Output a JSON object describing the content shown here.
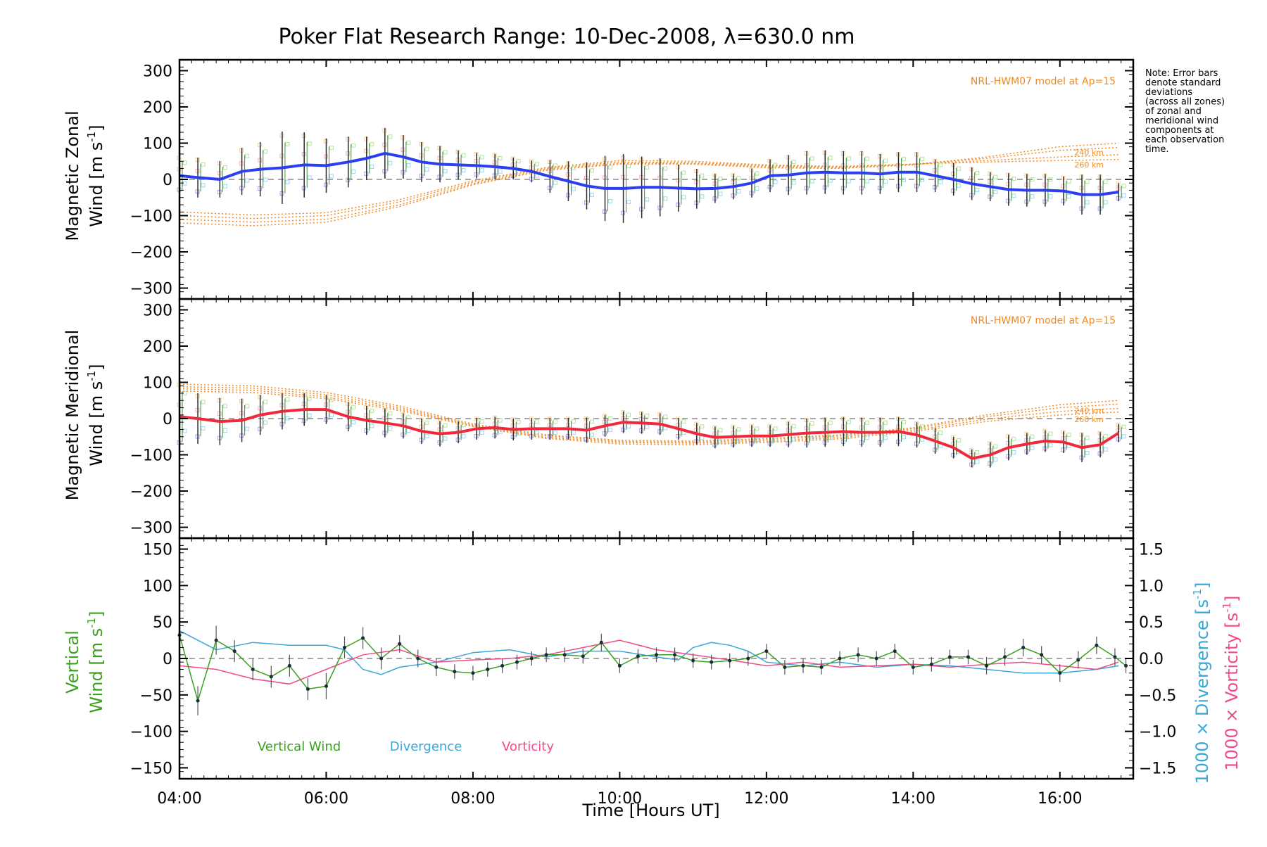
{
  "title": "Poker Flat Research Range: 10-Dec-2008, λ=630.0 nm",
  "note": [
    "Note: Error bars",
    "denote standard",
    "deviations",
    "(across all zones)",
    "of zonal and",
    "meridional wind",
    "components at",
    "each observation",
    "time."
  ],
  "xlabel": "Time [Hours UT]",
  "x_ticks": [
    "04:00",
    "06:00",
    "08:00",
    "10:00",
    "12:00",
    "14:00",
    "16:00"
  ],
  "colors": {
    "zonal": "#2b3ff0",
    "meridional": "#f0283c",
    "model": "#f08a24",
    "vertical": "#3aa01e",
    "divergence": "#3aa6d6",
    "vorticity": "#f04a8a",
    "zero_line": "#8a8a8a"
  },
  "chart_data": [
    {
      "type": "line",
      "panel": "zonal",
      "ylabel_line1": "Magnetic Zonal",
      "ylabel_line2": "Wind [m s",
      "ylabel_sup": "-1",
      "ylabel_close": "]",
      "ylim": [
        -330,
        330
      ],
      "y_ticks": [
        300,
        200,
        100,
        0,
        -100,
        -200,
        -300
      ],
      "model_label": "NRL-HWM07 model at Ap=15",
      "model_alt_labels": [
        "240 km",
        "260 km"
      ],
      "x": [
        4.0,
        4.25,
        4.55,
        4.85,
        5.1,
        5.4,
        5.7,
        6.0,
        6.3,
        6.55,
        6.8,
        7.05,
        7.3,
        7.55,
        7.8,
        8.05,
        8.3,
        8.55,
        8.8,
        9.05,
        9.3,
        9.55,
        9.8,
        10.05,
        10.3,
        10.55,
        10.8,
        11.05,
        11.3,
        11.55,
        11.8,
        12.05,
        12.3,
        12.55,
        12.8,
        13.05,
        13.3,
        13.55,
        13.8,
        14.05,
        14.3,
        14.55,
        14.8,
        15.05,
        15.3,
        15.55,
        15.8,
        16.05,
        16.3,
        16.55,
        16.8
      ],
      "values": [
        10,
        5,
        0,
        22,
        28,
        32,
        40,
        38,
        48,
        58,
        72,
        62,
        48,
        42,
        40,
        38,
        35,
        30,
        22,
        8,
        -5,
        -18,
        -25,
        -25,
        -22,
        -22,
        -24,
        -26,
        -25,
        -20,
        -10,
        10,
        12,
        18,
        20,
        18,
        18,
        15,
        20,
        20,
        10,
        0,
        -12,
        -20,
        -28,
        -30,
        -30,
        -32,
        -42,
        -42,
        -35
      ],
      "errors": [
        55,
        55,
        50,
        65,
        75,
        100,
        90,
        75,
        70,
        60,
        70,
        60,
        55,
        50,
        40,
        35,
        35,
        30,
        30,
        45,
        55,
        65,
        90,
        95,
        85,
        80,
        65,
        55,
        40,
        35,
        40,
        45,
        55,
        60,
        60,
        60,
        60,
        55,
        55,
        55,
        45,
        45,
        45,
        40,
        45,
        45,
        45,
        40,
        55,
        55,
        25
      ],
      "model_curves": [
        {
          "x": [
            4.0,
            5.0,
            6.0,
            7.0,
            8.0,
            9.0,
            10.0,
            11.0,
            12.0,
            13.0,
            14.0,
            15.0,
            16.0,
            16.8
          ],
          "values": [
            -120,
            -128,
            -118,
            -75,
            -15,
            25,
            42,
            42,
            32,
            30,
            40,
            62,
            90,
            100
          ]
        },
        {
          "x": [
            4.0,
            5.0,
            6.0,
            7.0,
            8.0,
            9.0,
            10.0,
            11.0,
            12.0,
            13.0,
            14.0,
            15.0,
            16.0,
            16.8
          ],
          "values": [
            -110,
            -118,
            -110,
            -70,
            -12,
            28,
            44,
            44,
            35,
            32,
            42,
            58,
            80,
            88
          ]
        },
        {
          "x": [
            4.0,
            5.0,
            6.0,
            7.0,
            8.0,
            9.0,
            10.0,
            11.0,
            12.0,
            13.0,
            14.0,
            15.0,
            16.0,
            16.8
          ],
          "values": [
            -100,
            -108,
            -100,
            -62,
            -8,
            30,
            48,
            46,
            38,
            34,
            42,
            52,
            62,
            68
          ]
        },
        {
          "x": [
            4.0,
            5.0,
            6.0,
            7.0,
            8.0,
            9.0,
            10.0,
            11.0,
            12.0,
            13.0,
            14.0,
            15.0,
            16.0,
            16.8
          ],
          "values": [
            -90,
            -98,
            -92,
            -56,
            -4,
            33,
            52,
            50,
            40,
            36,
            42,
            48,
            52,
            55
          ]
        }
      ]
    },
    {
      "type": "line",
      "panel": "meridional",
      "ylabel_line1": "Magnetic Meridional",
      "ylabel_line2": "Wind [m s",
      "ylabel_sup": "-1",
      "ylabel_close": "]",
      "ylim": [
        -330,
        330
      ],
      "y_ticks": [
        300,
        200,
        100,
        0,
        -100,
        -200,
        -300
      ],
      "model_label": "NRL-HWM07 model at Ap=15",
      "model_alt_labels": [
        "240 km",
        "260 km"
      ],
      "x": [
        4.0,
        4.25,
        4.55,
        4.85,
        5.1,
        5.4,
        5.7,
        6.0,
        6.3,
        6.55,
        6.8,
        7.05,
        7.3,
        7.55,
        7.8,
        8.05,
        8.3,
        8.55,
        8.8,
        9.05,
        9.3,
        9.55,
        9.8,
        10.05,
        10.3,
        10.55,
        10.8,
        11.05,
        11.3,
        11.55,
        11.8,
        12.05,
        12.3,
        12.55,
        12.8,
        13.05,
        13.3,
        13.55,
        13.8,
        14.05,
        14.3,
        14.55,
        14.8,
        15.05,
        15.3,
        15.55,
        15.8,
        16.05,
        16.3,
        16.55,
        16.8
      ],
      "values": [
        5,
        0,
        -8,
        -5,
        10,
        20,
        25,
        25,
        5,
        -5,
        -12,
        -20,
        -35,
        -42,
        -38,
        -28,
        -25,
        -30,
        -28,
        -28,
        -28,
        -32,
        -20,
        -10,
        -12,
        -15,
        -28,
        -42,
        -52,
        -50,
        -48,
        -48,
        -44,
        -40,
        -38,
        -36,
        -38,
        -38,
        -36,
        -45,
        -62,
        -80,
        -110,
        -100,
        -80,
        -70,
        -62,
        -65,
        -80,
        -72,
        -40
      ],
      "errors": [
        100,
        70,
        65,
        60,
        55,
        50,
        45,
        40,
        40,
        40,
        40,
        35,
        35,
        35,
        30,
        30,
        30,
        30,
        30,
        30,
        30,
        35,
        30,
        30,
        30,
        30,
        30,
        30,
        30,
        30,
        30,
        30,
        35,
        40,
        40,
        40,
        40,
        40,
        40,
        35,
        35,
        30,
        25,
        35,
        35,
        30,
        30,
        30,
        40,
        35,
        25
      ],
      "model_curves": [
        {
          "x": [
            4.0,
            5.0,
            6.0,
            7.0,
            8.0,
            9.0,
            10.0,
            11.0,
            12.0,
            13.0,
            14.0,
            15.0,
            16.0,
            16.8
          ],
          "values": [
            95,
            90,
            72,
            35,
            -15,
            -45,
            -60,
            -62,
            -55,
            -45,
            -25,
            10,
            38,
            50
          ]
        },
        {
          "x": [
            4.0,
            5.0,
            6.0,
            7.0,
            8.0,
            9.0,
            10.0,
            11.0,
            12.0,
            13.0,
            14.0,
            15.0,
            16.0,
            16.8
          ],
          "values": [
            88,
            84,
            66,
            30,
            -18,
            -48,
            -63,
            -65,
            -58,
            -48,
            -28,
            5,
            30,
            40
          ]
        },
        {
          "x": [
            4.0,
            5.0,
            6.0,
            7.0,
            8.0,
            9.0,
            10.0,
            11.0,
            12.0,
            13.0,
            14.0,
            15.0,
            16.0,
            16.8
          ],
          "values": [
            82,
            78,
            60,
            26,
            -20,
            -52,
            -66,
            -68,
            -62,
            -52,
            -32,
            -2,
            20,
            28
          ]
        },
        {
          "x": [
            4.0,
            5.0,
            6.0,
            7.0,
            8.0,
            9.0,
            10.0,
            11.0,
            12.0,
            13.0,
            14.0,
            15.0,
            16.0,
            16.8
          ],
          "values": [
            76,
            72,
            55,
            22,
            -22,
            -55,
            -70,
            -72,
            -66,
            -56,
            -36,
            -8,
            10,
            18
          ]
        }
      ]
    },
    {
      "type": "line",
      "panel": "vertical",
      "ylabel_line1": "Vertical",
      "ylabel_line2": "Wind [m s",
      "ylabel_sup": "-1",
      "ylabel_close": "]",
      "ylim": [
        -165,
        165
      ],
      "y_ticks": [
        150,
        100,
        50,
        0,
        -50,
        -100,
        -150
      ],
      "y2lim": [
        -1.65,
        1.65
      ],
      "y2_ticks": [
        "1.5",
        "1.0",
        "0.5",
        "0.0",
        "-0.5",
        "-1.0",
        "-1.5"
      ],
      "y2_ticks_values": [
        1.5,
        1.0,
        0.5,
        0.0,
        -0.5,
        -1.0,
        -1.5
      ],
      "y2_label_divergence": "1000 × Divergence [s",
      "y2_label_vorticity": "1000 × Vorticity [s",
      "y2_label_sup": "-1",
      "y2_label_close": "]",
      "legend": [
        "Vertical Wind",
        "Divergence",
        "Vorticity"
      ],
      "series": [
        {
          "name": "Vertical Wind",
          "x": [
            4.0,
            4.25,
            4.5,
            4.75,
            5.0,
            5.25,
            5.5,
            5.75,
            6.0,
            6.25,
            6.5,
            6.75,
            7.0,
            7.25,
            7.5,
            7.75,
            8.0,
            8.2,
            8.4,
            8.6,
            8.8,
            9.0,
            9.25,
            9.5,
            9.75,
            10.0,
            10.25,
            10.5,
            10.75,
            11.0,
            11.25,
            11.5,
            11.75,
            12.0,
            12.25,
            12.5,
            12.75,
            13.0,
            13.25,
            13.5,
            13.75,
            14.0,
            14.25,
            14.5,
            14.75,
            15.0,
            15.25,
            15.5,
            15.75,
            16.0,
            16.25,
            16.5,
            16.75,
            16.9
          ],
          "values": [
            32,
            -58,
            25,
            10,
            -15,
            -25,
            -10,
            -42,
            -38,
            15,
            28,
            0,
            20,
            0,
            -12,
            -18,
            -20,
            -15,
            -10,
            -5,
            0,
            5,
            5,
            3,
            22,
            -10,
            3,
            5,
            5,
            -3,
            -5,
            -3,
            0,
            10,
            -12,
            -10,
            -12,
            0,
            5,
            0,
            10,
            -12,
            -8,
            2,
            2,
            -10,
            2,
            15,
            5,
            -20,
            -2,
            18,
            2,
            -10
          ],
          "errors": [
            15,
            20,
            20,
            15,
            15,
            15,
            15,
            15,
            18,
            15,
            15,
            15,
            12,
            12,
            12,
            10,
            10,
            10,
            10,
            10,
            10,
            10,
            10,
            10,
            12,
            10,
            10,
            10,
            10,
            10,
            10,
            10,
            10,
            10,
            10,
            10,
            10,
            10,
            10,
            10,
            10,
            10,
            10,
            10,
            10,
            12,
            12,
            12,
            12,
            12,
            12,
            12,
            12,
            10
          ]
        },
        {
          "name": "Divergence",
          "x": [
            4.0,
            4.5,
            5.0,
            5.5,
            6.0,
            6.25,
            6.5,
            6.75,
            7.0,
            7.5,
            8.0,
            8.5,
            9.0,
            9.5,
            10.0,
            10.5,
            10.8,
            11.0,
            11.25,
            11.5,
            11.75,
            12.0,
            12.5,
            13.0,
            13.5,
            14.0,
            14.5,
            15.0,
            15.5,
            16.0,
            16.5,
            16.8
          ],
          "values": [
            0.38,
            0.12,
            0.22,
            0.18,
            0.18,
            0.12,
            -0.15,
            -0.22,
            -0.12,
            -0.05,
            0.08,
            0.12,
            0.02,
            0.1,
            0.1,
            0.02,
            -0.02,
            0.15,
            0.22,
            0.18,
            0.1,
            -0.05,
            -0.1,
            -0.05,
            -0.12,
            -0.08,
            -0.1,
            -0.15,
            -0.2,
            -0.2,
            -0.15,
            -0.1
          ]
        },
        {
          "name": "Vorticity",
          "x": [
            4.0,
            4.5,
            5.0,
            5.5,
            6.0,
            6.5,
            7.0,
            7.5,
            8.0,
            8.5,
            9.0,
            9.5,
            10.0,
            10.5,
            11.0,
            11.5,
            12.0,
            12.5,
            13.0,
            13.5,
            14.0,
            14.5,
            15.0,
            15.5,
            16.0,
            16.5,
            16.8
          ],
          "values": [
            -0.1,
            -0.15,
            -0.28,
            -0.35,
            -0.15,
            0.05,
            0.12,
            -0.05,
            -0.02,
            0.0,
            0.05,
            0.15,
            0.25,
            0.12,
            0.05,
            -0.02,
            -0.1,
            -0.05,
            -0.12,
            -0.1,
            -0.08,
            -0.12,
            -0.08,
            -0.05,
            -0.1,
            -0.15,
            -0.05
          ]
        }
      ]
    }
  ]
}
